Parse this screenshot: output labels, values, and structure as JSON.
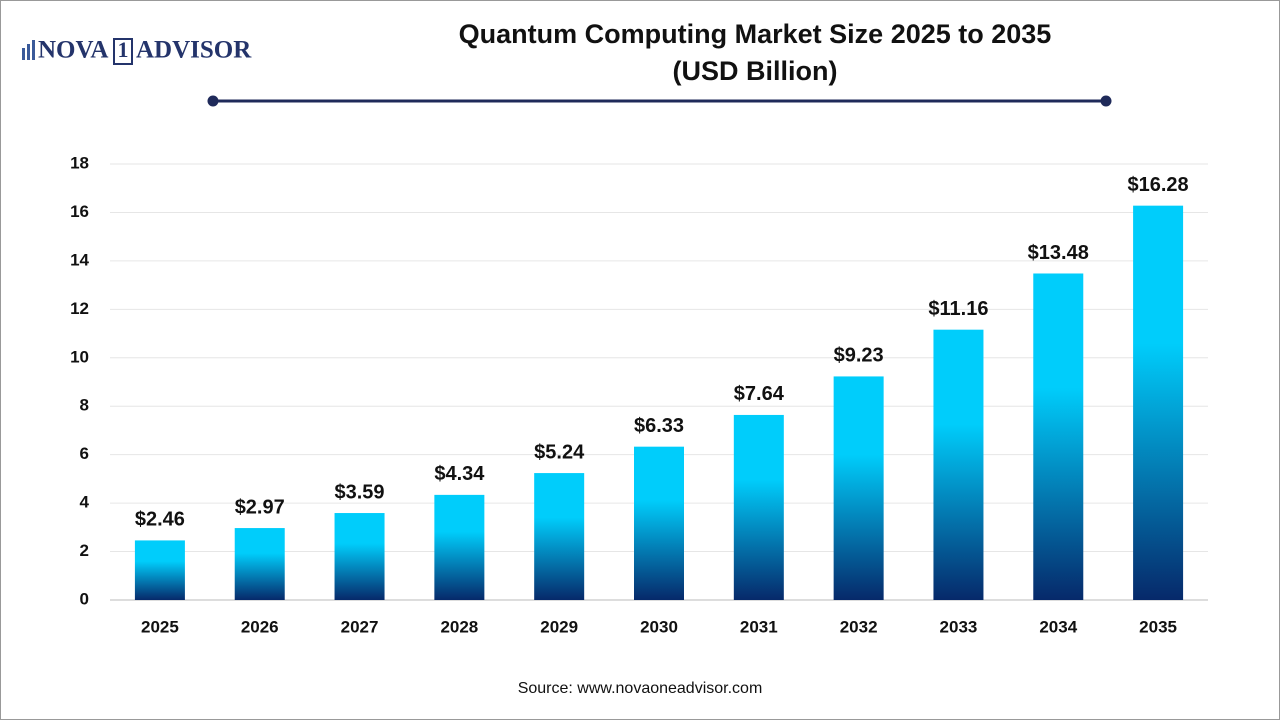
{
  "chart_data": {
    "type": "bar",
    "logo": {
      "left": "NOVA",
      "mark": "1",
      "right": "ADVISOR"
    },
    "title": "Quantum Computing Market Size 2025 to 2035",
    "subtitle": "(USD Billion)",
    "categories": [
      "2025",
      "2026",
      "2027",
      "2028",
      "2029",
      "2030",
      "2031",
      "2032",
      "2033",
      "2034",
      "2035"
    ],
    "values": [
      2.46,
      2.97,
      3.59,
      4.34,
      5.24,
      6.33,
      7.64,
      9.23,
      11.16,
      13.48,
      16.28
    ],
    "value_labels": [
      "$2.46",
      "$2.97",
      "$3.59",
      "$4.34",
      "$5.24",
      "$6.33",
      "$7.64",
      "$9.23",
      "$11.16",
      "$13.48",
      "$16.28"
    ],
    "gradient": [
      "#00cdfb",
      "#06296a"
    ],
    "ylim": [
      0,
      18
    ],
    "yticks": [
      0,
      2,
      4,
      6,
      8,
      10,
      12,
      14,
      16,
      18
    ],
    "grid": true,
    "source": "Source: www.novaoneadvisor.com"
  }
}
